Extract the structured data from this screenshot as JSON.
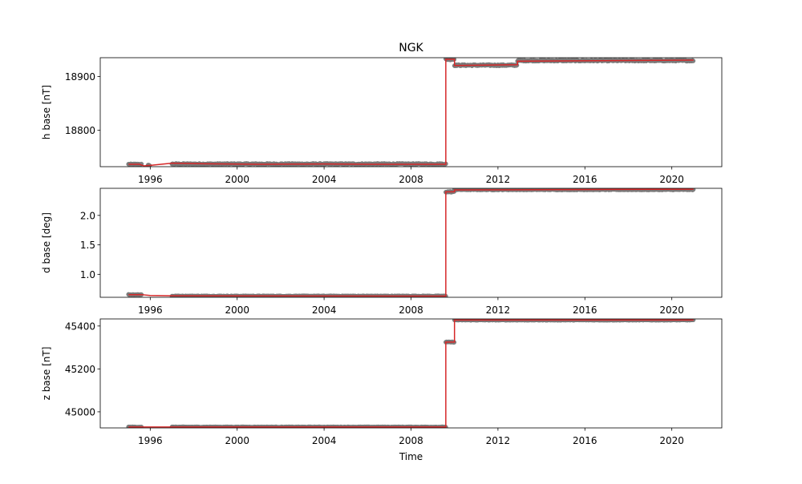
{
  "chart_data": {
    "type": "line",
    "title": "NGK",
    "xlabel": "Time",
    "xlim": [
      1993.7,
      2022.3
    ],
    "x_ticks": [
      1996,
      2000,
      2004,
      2008,
      2012,
      2016,
      2020
    ],
    "x_tick_labels": [
      "1996",
      "2000",
      "2004",
      "2008",
      "2012",
      "2016",
      "2020"
    ],
    "colors": {
      "scatter": "#808080",
      "line": "#d62728"
    },
    "panels": [
      {
        "id": "h",
        "ylabel": "h base [nT]",
        "ylim": [
          18732,
          18935
        ],
        "y_ticks": [
          18800,
          18900
        ],
        "y_tick_labels": [
          "18800",
          "18900"
        ],
        "series": [
          {
            "type": "scatter",
            "segments": [
              {
                "x": [
                  1995.0,
                  1995.6
                ],
                "y": 18736.5,
                "noise": 0.8
              },
              {
                "x": [
                  1995.9,
                  1996.0
                ],
                "y": 18734.5,
                "noise": 0.6
              },
              {
                "x": [
                  1997.0,
                  2009.6
                ],
                "y": 18737.0,
                "noise": 1.0
              },
              {
                "x": [
                  2009.6,
                  2010.0
                ],
                "y": 18932.0,
                "noise": 1.2
              },
              {
                "x": [
                  2010.0,
                  2012.9
                ],
                "y": 18921.0,
                "noise": 1.2
              },
              {
                "x": [
                  2012.9,
                  2021.0
                ],
                "y": 18929.5,
                "noise": 1.0
              }
            ]
          },
          {
            "type": "line",
            "points": [
              [
                1995.0,
                18736.5
              ],
              [
                1995.5,
                18736.5
              ],
              [
                1995.7,
                18733.5
              ],
              [
                1996.0,
                18734.5
              ],
              [
                1997.0,
                18738.5
              ],
              [
                1998.5,
                18737.5
              ],
              [
                2001.0,
                18736.5
              ],
              [
                2004.0,
                18737.0
              ],
              [
                2006.0,
                18736.5
              ],
              [
                2009.6,
                18736.5
              ],
              [
                2009.6,
                18932.0
              ],
              [
                2010.0,
                18932.0
              ],
              [
                2010.0,
                18920.5
              ],
              [
                2012.9,
                18922.0
              ],
              [
                2012.9,
                18928.5
              ],
              [
                2021.0,
                18930.5
              ]
            ]
          }
        ]
      },
      {
        "id": "d",
        "ylabel": "d base [deg]",
        "ylim": [
          0.61,
          2.46
        ],
        "y_ticks": [
          1.0,
          1.5,
          2.0
        ],
        "y_tick_labels": [
          "1.0",
          "1.5",
          "2.0"
        ],
        "series": [
          {
            "type": "scatter",
            "segments": [
              {
                "x": [
                  1995.0,
                  1995.6
                ],
                "y": 0.655,
                "noise": 0.006
              },
              {
                "x": [
                  1997.0,
                  2009.6
                ],
                "y": 0.63,
                "noise": 0.005
              },
              {
                "x": [
                  2009.6,
                  2010.0
                ],
                "y": 2.4,
                "noise": 0.008
              },
              {
                "x": [
                  2010.0,
                  2021.0
                ],
                "y": 2.438,
                "noise": 0.006
              }
            ]
          },
          {
            "type": "line",
            "points": [
              [
                1995.0,
                0.655
              ],
              [
                1995.6,
                0.655
              ],
              [
                1996.0,
                0.64
              ],
              [
                1997.0,
                0.635
              ],
              [
                2009.6,
                0.63
              ],
              [
                2009.6,
                2.4
              ],
              [
                2010.0,
                2.4
              ],
              [
                2010.0,
                2.432
              ],
              [
                2021.0,
                2.445
              ]
            ]
          }
        ]
      },
      {
        "id": "z",
        "ylabel": "z base [nT]",
        "ylim": [
          44925,
          45433
        ],
        "y_ticks": [
          45000,
          45200,
          45400
        ],
        "y_tick_labels": [
          "45000",
          "45200",
          "45400"
        ],
        "series": [
          {
            "type": "scatter",
            "segments": [
              {
                "x": [
                  1995.0,
                  1995.6
                ],
                "y": 44929.0,
                "noise": 1.2
              },
              {
                "x": [
                  1997.0,
                  2009.6
                ],
                "y": 44929.0,
                "noise": 1.2
              },
              {
                "x": [
                  2009.6,
                  2010.0
                ],
                "y": 45325.0,
                "noise": 1.2
              },
              {
                "x": [
                  2010.0,
                  2021.0
                ],
                "y": 45428.0,
                "noise": 1.2
              }
            ]
          },
          {
            "type": "line",
            "points": [
              [
                1995.0,
                44929.0
              ],
              [
                2009.6,
                44929.0
              ],
              [
                2009.6,
                45325.0
              ],
              [
                2010.0,
                45325.0
              ],
              [
                2010.0,
                45428.0
              ],
              [
                2021.0,
                45428.0
              ]
            ]
          }
        ]
      }
    ]
  }
}
